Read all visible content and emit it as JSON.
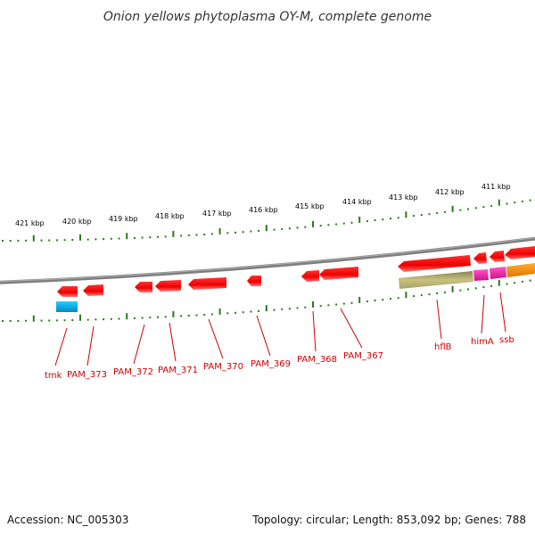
{
  "title": "Onion yellows phytoplasma OY-M, complete genome",
  "footer": {
    "accession": "Accession: NC_005303",
    "summary": "Topology: circular; Length: 853,092 bp; Genes: 788"
  },
  "colors": {
    "gene_red": "#ee0000",
    "gene_cyan": "#00aaee",
    "gene_olive": "#bbb36e",
    "gene_magenta": "#ee22aa",
    "gene_orange": "#ff8800",
    "tick_green": "#2a7a1a",
    "backbone": "#888888",
    "label": "#cc0000"
  },
  "ruler_ticks": [
    "421 kbp",
    "420 kbp",
    "419 kbp",
    "418 kbp",
    "417 kbp",
    "416 kbp",
    "415 kbp",
    "414 kbp",
    "413 kbp",
    "412 kbp",
    "411 kbp"
  ],
  "gene_labels": [
    "tmk",
    "PAM_373",
    "PAM_372",
    "PAM_371",
    "PAM_370",
    "PAM_369",
    "PAM_368",
    "PAM_367",
    "hflB",
    "himA",
    "ssb"
  ]
}
